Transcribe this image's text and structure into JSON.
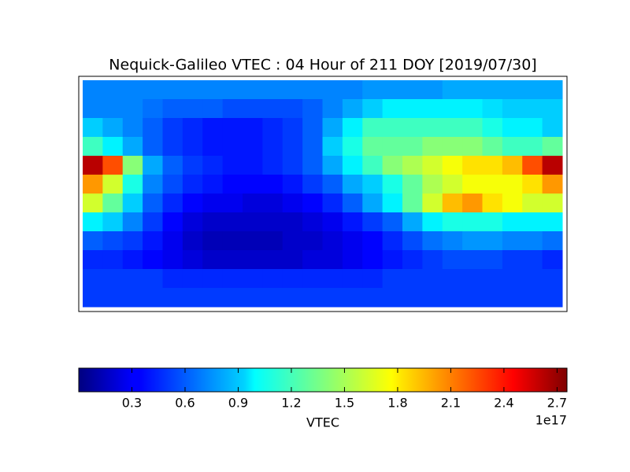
{
  "chart_data": {
    "type": "heatmap",
    "title": "Nequick-Galileo VTEC : 04 Hour of 211 DOY [2019/07/30]",
    "colormap": "jet",
    "values": [
      [
        0.7,
        0.7,
        0.7,
        0.7,
        0.7,
        0.7,
        0.7,
        0.7,
        0.7,
        0.7,
        0.7,
        0.7,
        0.7,
        0.7,
        0.75,
        0.75,
        0.75,
        0.75,
        0.8,
        0.8,
        0.8,
        0.8,
        0.8,
        0.8
      ],
      [
        0.7,
        0.7,
        0.7,
        0.65,
        0.6,
        0.6,
        0.6,
        0.55,
        0.55,
        0.55,
        0.55,
        0.6,
        0.7,
        0.8,
        0.9,
        1.0,
        1.0,
        1.0,
        1.0,
        1.0,
        0.95,
        0.9,
        0.9,
        0.9
      ],
      [
        0.9,
        0.8,
        0.7,
        0.6,
        0.5,
        0.45,
        0.4,
        0.4,
        0.4,
        0.45,
        0.5,
        0.6,
        0.8,
        1.0,
        1.2,
        1.2,
        1.2,
        1.2,
        1.2,
        1.2,
        1.1,
        1.0,
        1.0,
        0.9
      ],
      [
        1.2,
        1.0,
        0.8,
        0.6,
        0.5,
        0.45,
        0.4,
        0.4,
        0.4,
        0.45,
        0.5,
        0.6,
        0.9,
        1.1,
        1.3,
        1.3,
        1.3,
        1.4,
        1.4,
        1.4,
        1.3,
        1.2,
        1.2,
        1.3
      ],
      [
        2.6,
        2.2,
        1.4,
        0.8,
        0.6,
        0.5,
        0.45,
        0.4,
        0.4,
        0.45,
        0.5,
        0.6,
        0.8,
        1.0,
        1.2,
        1.4,
        1.5,
        1.6,
        1.7,
        1.8,
        1.8,
        1.9,
        2.2,
        2.6
      ],
      [
        2.0,
        1.6,
        1.1,
        0.7,
        0.55,
        0.45,
        0.4,
        0.35,
        0.35,
        0.35,
        0.4,
        0.5,
        0.6,
        0.8,
        0.9,
        1.1,
        1.3,
        1.5,
        1.6,
        1.7,
        1.7,
        1.7,
        1.8,
        2.0
      ],
      [
        1.6,
        1.3,
        0.9,
        0.6,
        0.45,
        0.35,
        0.3,
        0.3,
        0.25,
        0.25,
        0.3,
        0.35,
        0.45,
        0.6,
        0.8,
        1.0,
        1.3,
        1.6,
        1.9,
        2.0,
        1.8,
        1.7,
        1.6,
        1.6
      ],
      [
        1.0,
        0.9,
        0.7,
        0.5,
        0.35,
        0.25,
        0.2,
        0.2,
        0.2,
        0.2,
        0.2,
        0.25,
        0.3,
        0.4,
        0.5,
        0.6,
        0.8,
        1.0,
        1.1,
        1.1,
        1.1,
        1.0,
        1.0,
        1.0
      ],
      [
        0.6,
        0.55,
        0.5,
        0.4,
        0.3,
        0.2,
        0.15,
        0.15,
        0.15,
        0.15,
        0.2,
        0.2,
        0.25,
        0.3,
        0.35,
        0.45,
        0.55,
        0.65,
        0.7,
        0.75,
        0.75,
        0.7,
        0.7,
        0.65
      ],
      [
        0.45,
        0.45,
        0.4,
        0.35,
        0.3,
        0.25,
        0.2,
        0.2,
        0.2,
        0.2,
        0.2,
        0.25,
        0.25,
        0.3,
        0.35,
        0.4,
        0.45,
        0.5,
        0.55,
        0.55,
        0.55,
        0.5,
        0.5,
        0.45
      ],
      [
        0.5,
        0.5,
        0.5,
        0.5,
        0.45,
        0.45,
        0.45,
        0.45,
        0.45,
        0.45,
        0.45,
        0.45,
        0.45,
        0.45,
        0.45,
        0.5,
        0.5,
        0.5,
        0.5,
        0.5,
        0.5,
        0.5,
        0.5,
        0.5
      ],
      [
        0.5,
        0.5,
        0.5,
        0.5,
        0.5,
        0.5,
        0.5,
        0.5,
        0.5,
        0.5,
        0.5,
        0.5,
        0.5,
        0.5,
        0.5,
        0.5,
        0.5,
        0.5,
        0.5,
        0.5,
        0.5,
        0.5,
        0.5,
        0.5
      ]
    ],
    "colorbar": {
      "label": "VTEC",
      "offset_label": "1e17",
      "clim": [
        0,
        2.756
      ],
      "ticks": [
        0.3,
        0.6,
        0.9,
        1.2,
        1.5,
        1.8,
        2.1,
        2.4,
        2.7
      ]
    }
  }
}
